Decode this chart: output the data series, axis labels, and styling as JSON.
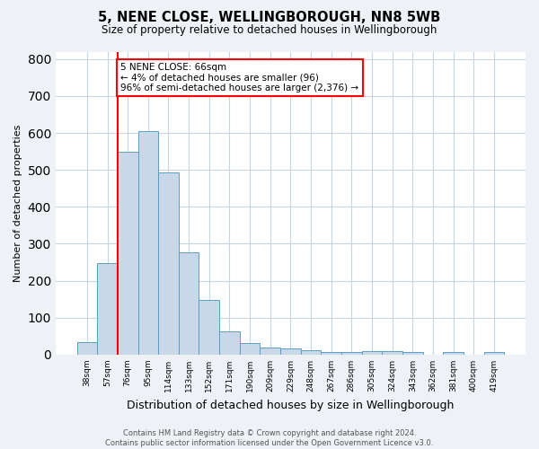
{
  "title": "5, NENE CLOSE, WELLINGBOROUGH, NN8 5WB",
  "subtitle": "Size of property relative to detached houses in Wellingborough",
  "xlabel": "Distribution of detached houses by size in Wellingborough",
  "ylabel": "Number of detached properties",
  "categories": [
    "38sqm",
    "57sqm",
    "76sqm",
    "95sqm",
    "114sqm",
    "133sqm",
    "152sqm",
    "171sqm",
    "190sqm",
    "209sqm",
    "229sqm",
    "248sqm",
    "267sqm",
    "286sqm",
    "305sqm",
    "324sqm",
    "343sqm",
    "362sqm",
    "381sqm",
    "400sqm",
    "419sqm"
  ],
  "values": [
    35,
    248,
    550,
    605,
    493,
    278,
    148,
    62,
    32,
    20,
    16,
    12,
    7,
    6,
    10,
    10,
    8,
    0,
    8,
    0,
    8
  ],
  "bar_color": "#c8d8e8",
  "bar_edge_color": "#5a9fc0",
  "red_line_x": 1.5,
  "annotation_text": "5 NENE CLOSE: 66sqm\n← 4% of detached houses are smaller (96)\n96% of semi-detached houses are larger (2,376) →",
  "annotation_box_color": "white",
  "annotation_box_edge_color": "red",
  "ylim": [
    0,
    820
  ],
  "yticks": [
    0,
    100,
    200,
    300,
    400,
    500,
    600,
    700,
    800
  ],
  "footer": "Contains HM Land Registry data © Crown copyright and database right 2024.\nContains public sector information licensed under the Open Government Licence v3.0.",
  "bg_color": "#eef2f7",
  "plot_bg_color": "white",
  "grid_color": "#c8d4e0"
}
